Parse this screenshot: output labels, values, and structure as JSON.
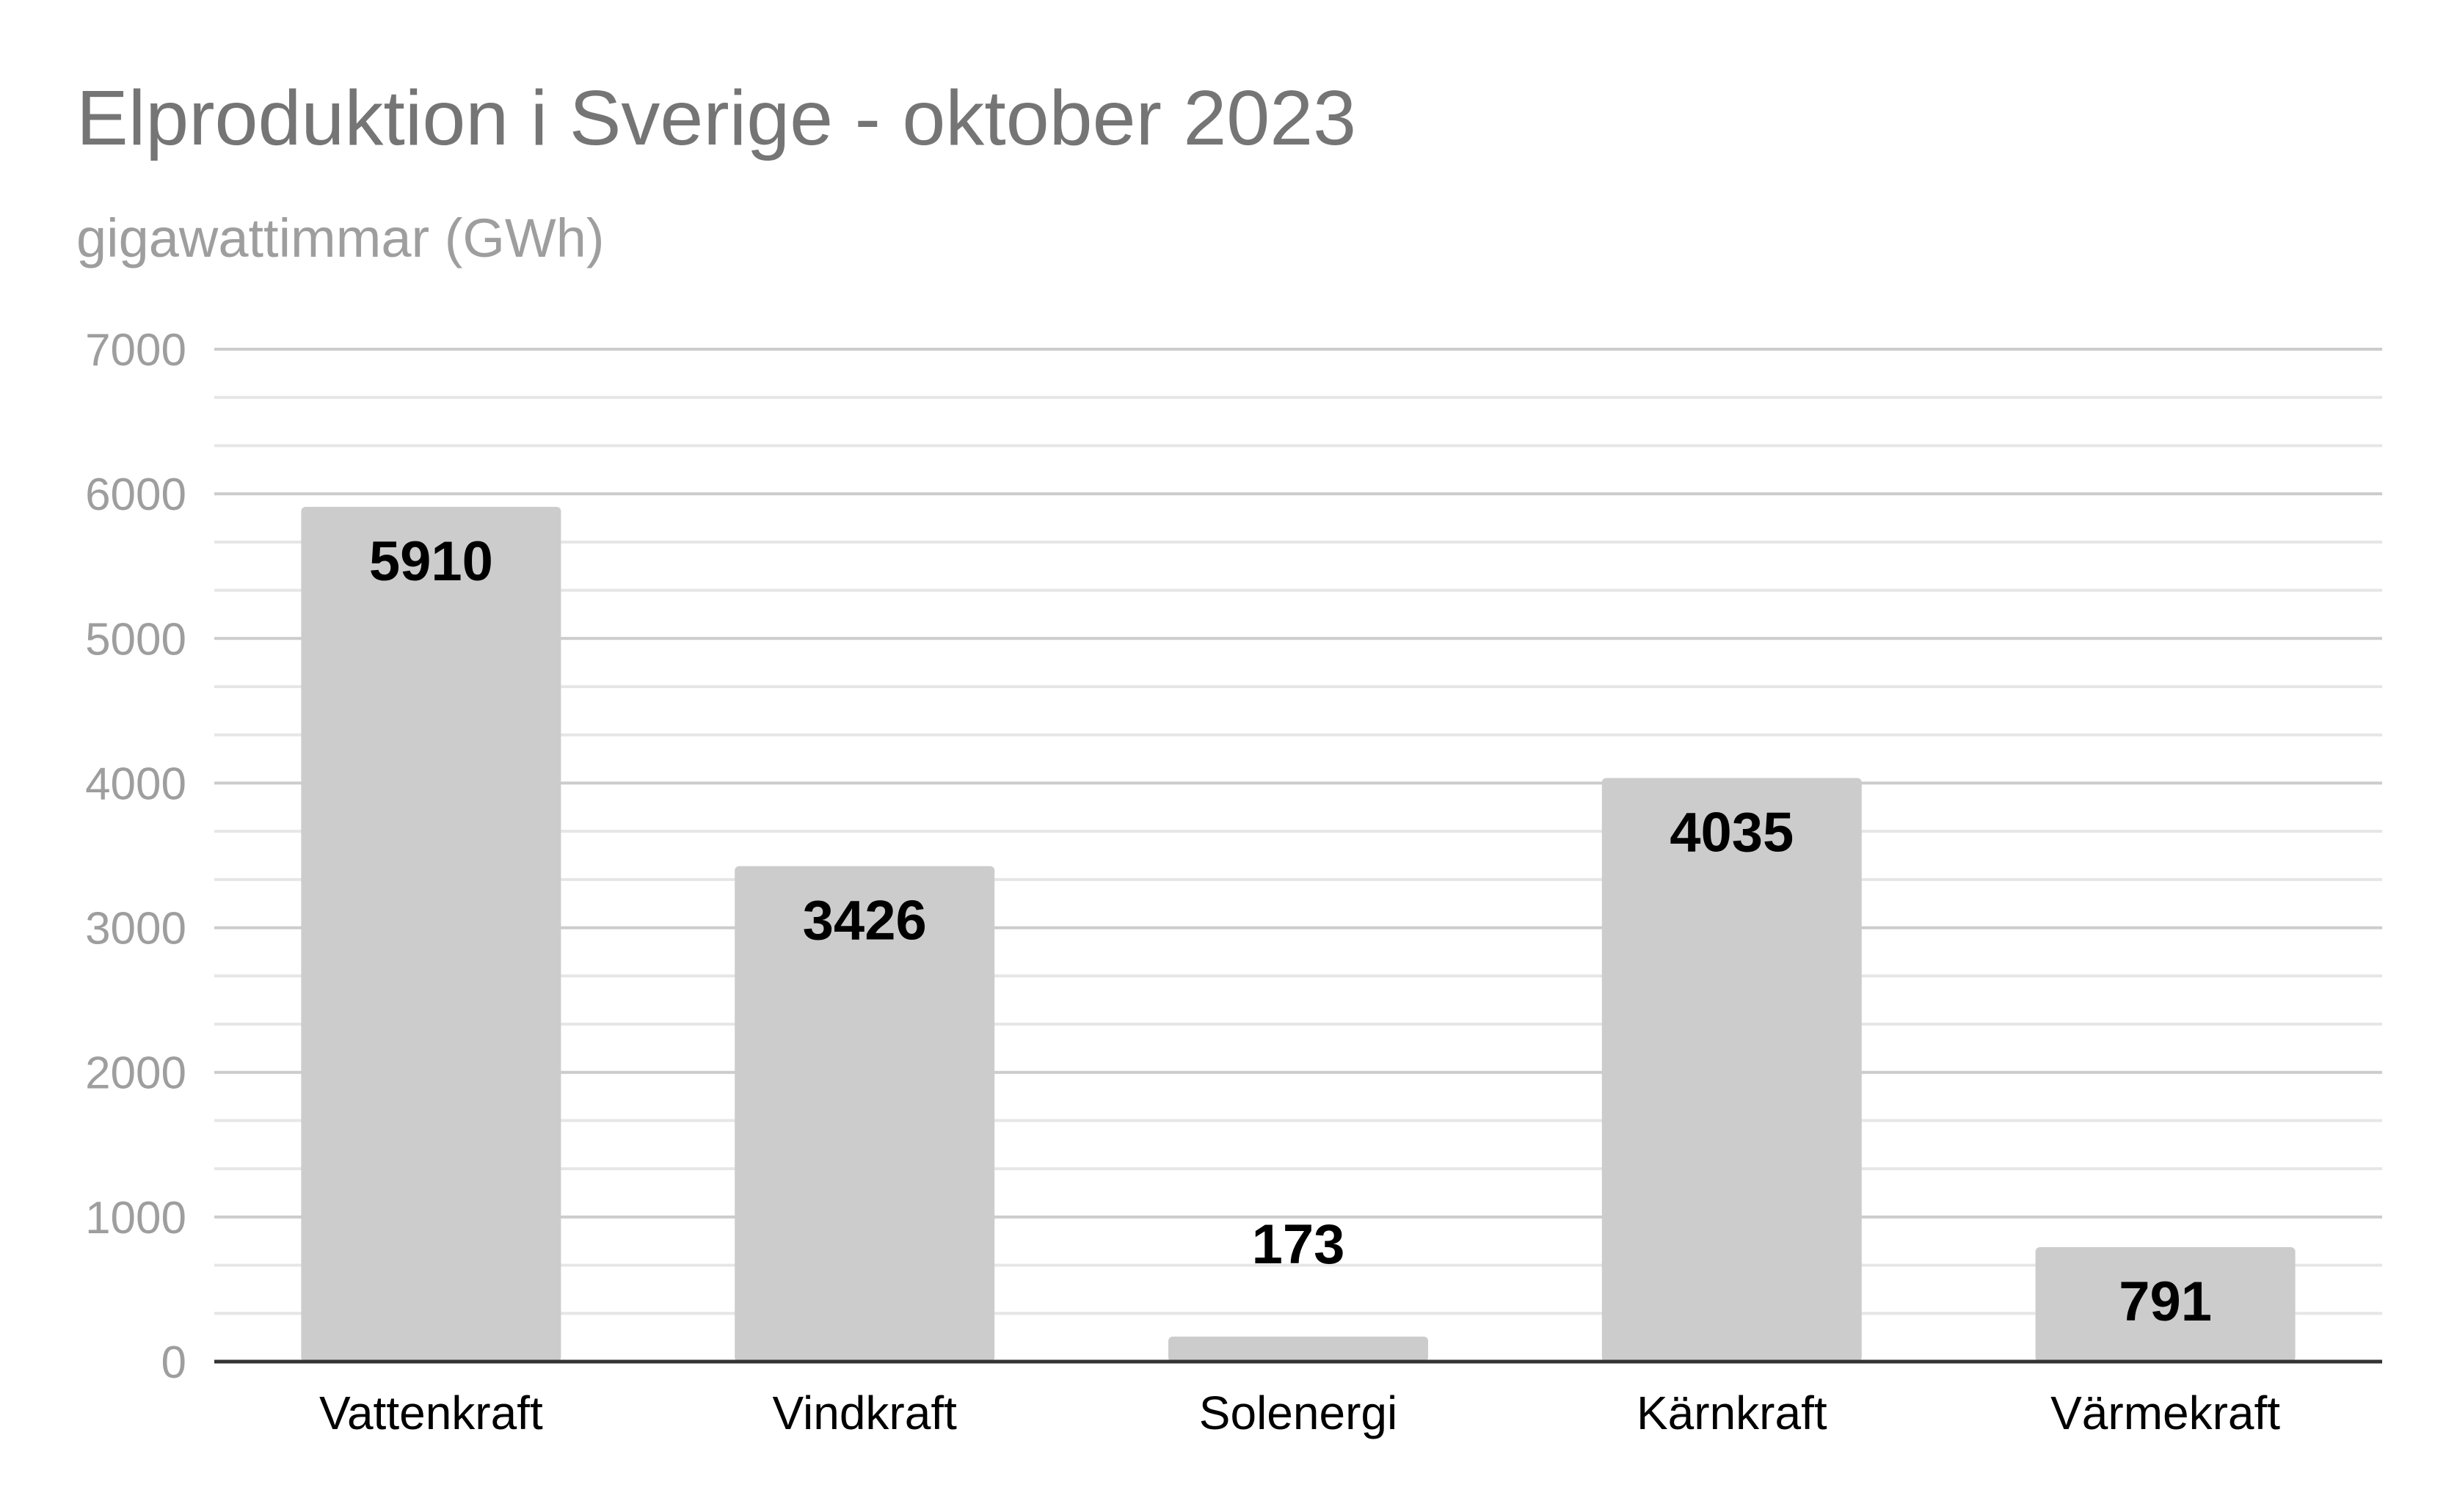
{
  "chart_data": {
    "type": "bar",
    "title": "Elproduktion i Sverige - oktober 2023",
    "subtitle": "gigawattimmar (GWh)",
    "xlabel": "",
    "ylabel": "",
    "categories": [
      "Vattenkraft",
      "Vindkraft",
      "Solenergi",
      "Kärnkraft",
      "Värmekraft"
    ],
    "values": [
      5910,
      3426,
      173,
      4035,
      791
    ],
    "data_labels": [
      "5910",
      "3426",
      "173",
      "4035",
      "791"
    ],
    "ylim": [
      0,
      7000
    ],
    "y_ticks": [
      0,
      1000,
      2000,
      3000,
      4000,
      5000,
      6000,
      7000
    ],
    "y_tick_labels": [
      "0",
      "1000",
      "2000",
      "3000",
      "4000",
      "5000",
      "6000",
      "7000"
    ],
    "minor_grid_step": 333.33,
    "grid": true,
    "legend": "none",
    "bar_color": "#cccccc",
    "major_grid_color": "#cccccc",
    "minor_grid_color": "#e6e6e6",
    "axis_color": "#333333"
  }
}
